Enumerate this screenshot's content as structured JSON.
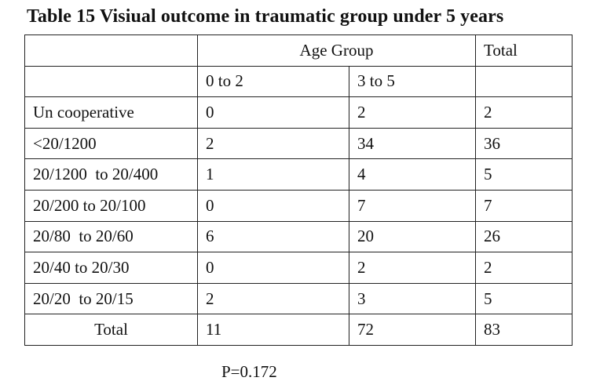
{
  "title": "Table 15 Visiual  outcome in traumatic group under 5 years",
  "table": {
    "group_header": "Age Group",
    "total_header": "Total",
    "subheaders": [
      "0 to 2",
      "3 to 5"
    ],
    "rows": [
      {
        "label": "Un cooperative",
        "a": "0",
        "b": "2",
        "total": "2"
      },
      {
        "label": "<20/1200",
        "a": "2",
        "b": "34",
        "total": "36"
      },
      {
        "label": "20/1200  to 20/400",
        "a": "1",
        "b": "4",
        "total": "5"
      },
      {
        "label": "20/200 to 20/100",
        "a": "0",
        "b": "7",
        "total": "7"
      },
      {
        "label": "20/80  to 20/60",
        "a": "6",
        "b": "20",
        "total": "26"
      },
      {
        "label": "20/40 to 20/30",
        "a": "0",
        "b": "2",
        "total": "2"
      },
      {
        "label": "20/20  to 20/15",
        "a": "2",
        "b": "3",
        "total": "5"
      }
    ],
    "total_row": {
      "label": "Total",
      "a": "11",
      "b": "72",
      "total": "83"
    }
  },
  "footnote": "P=0.172"
}
